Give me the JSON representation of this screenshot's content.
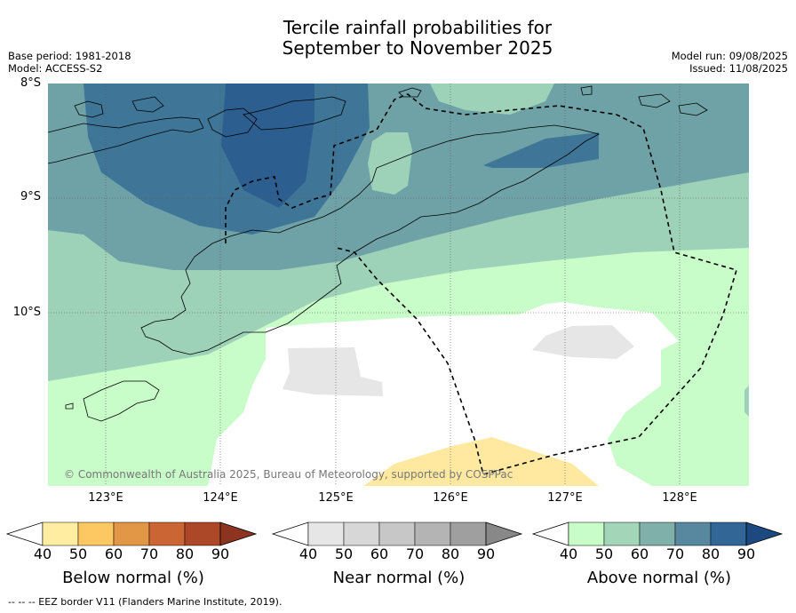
{
  "title": {
    "line1": "Tercile rainfall probabilities for",
    "line2": "September to November 2025"
  },
  "meta_left": {
    "base_period": "Base period: 1981-2018",
    "model": "Model: ACCESS-S2"
  },
  "meta_right": {
    "model_run": "Model run: 09/08/2025",
    "issued": "Issued: 11/08/2025"
  },
  "map": {
    "lat_labels": [
      "8°S",
      "9°S",
      "10°S"
    ],
    "lon_labels": [
      "123°E",
      "124°E",
      "125°E",
      "126°E",
      "127°E",
      "128°E"
    ],
    "copyright": "© Commonwealth of Australia 2025, Bureau of Meteorology, supported by COSPPac",
    "extent": {
      "lon_min": 122.5,
      "lon_max": 128.6,
      "lat_min": -11.5,
      "lat_max": -8.0
    },
    "colors": {
      "above_40": "#c8fcc8",
      "above_50": "#9dd1b8",
      "above_60": "#6fa2a7",
      "above_70": "#3f7597",
      "above_80": "#2c5e90",
      "near_40": "#e6e6e6",
      "below_40": "#ffe9a0",
      "land_outline": "#000000"
    }
  },
  "colorbars": [
    {
      "name": "Below normal (%)",
      "ticks": [
        "40",
        "50",
        "60",
        "70",
        "80",
        "90"
      ],
      "colors": [
        "#ffffff",
        "#ffeea2",
        "#fdc862",
        "#e29747",
        "#cc6534",
        "#ac4728",
        "#8c3420"
      ]
    },
    {
      "name": "Near normal (%)",
      "ticks": [
        "40",
        "50",
        "60",
        "70",
        "80",
        "90"
      ],
      "colors": [
        "#ffffff",
        "#e6e6e6",
        "#d7d7d7",
        "#c7c7c7",
        "#b4b4b4",
        "#9f9f9f",
        "#888888"
      ]
    },
    {
      "name": "Above normal (%)",
      "ticks": [
        "40",
        "50",
        "60",
        "70",
        "80",
        "90"
      ],
      "colors": [
        "#ffffff",
        "#c8fcc8",
        "#a3d6b9",
        "#7fb0a9",
        "#58889f",
        "#316696",
        "#1c4a80"
      ]
    }
  ],
  "footer": "--  --  -- EEZ border V11 (Flanders Marine Institute, 2019)."
}
